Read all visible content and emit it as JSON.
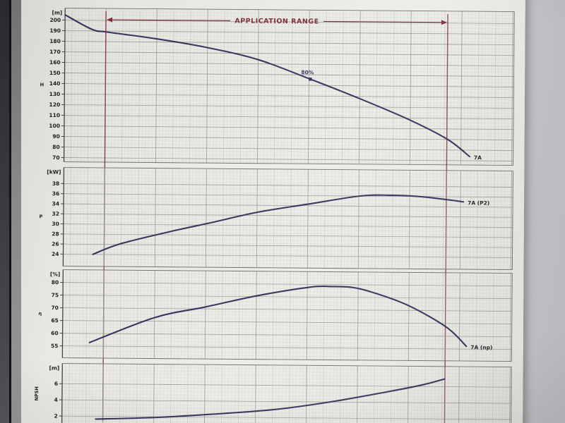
{
  "colors": {
    "curve": "#34345f",
    "app_range": "#7e2d3a",
    "grid_minor": "#bcc3b6",
    "grid_major": "#8f9b90",
    "border": "#6f6f68",
    "axis": "#44443e",
    "text": "#1e1e22",
    "page": "#eae9e4"
  },
  "chart_data": [
    {
      "type": "line",
      "unit_label": "[m]",
      "axis_letter": "H",
      "xlabel": "",
      "x_unit": "fraction of plot width (flow axis labels not visible)",
      "yticks": [
        200,
        190,
        180,
        170,
        160,
        150,
        140,
        130,
        120,
        110,
        100,
        90,
        80,
        70
      ],
      "ylim": [
        66,
        211.3
      ],
      "app_range": {
        "label": "APPLICATION RANGE",
        "x1": 0.091,
        "x2": 0.852
      },
      "annotations": [
        {
          "text": "80%",
          "at": [
            0.547,
            146
          ]
        }
      ],
      "series": [
        {
          "name": "7A",
          "end_label": "7A",
          "points": [
            [
              0.0,
              205
            ],
            [
              0.06,
              191.5
            ],
            [
              0.094,
              189
            ],
            [
              0.204,
              183
            ],
            [
              0.318,
              175
            ],
            [
              0.431,
              164
            ],
            [
              0.547,
              146
            ],
            [
              0.657,
              128
            ],
            [
              0.77,
              108
            ],
            [
              0.854,
              90
            ],
            [
              0.903,
              74
            ]
          ]
        }
      ]
    },
    {
      "type": "line",
      "unit_label": "[kW]",
      "axis_letter": "P",
      "xlabel": "",
      "yticks": [
        38,
        36,
        34,
        32,
        30,
        28,
        26,
        24
      ],
      "ylim": [
        21.6,
        41.2
      ],
      "series": [
        {
          "name": "7A (P2)",
          "end_label": "7A (P2)",
          "points": [
            [
              0.066,
              24.0
            ],
            [
              0.126,
              26.1
            ],
            [
              0.236,
              28.6
            ],
            [
              0.33,
              30.5
            ],
            [
              0.431,
              32.6
            ],
            [
              0.544,
              34.3
            ],
            [
              0.66,
              36.0
            ],
            [
              0.723,
              36.2
            ],
            [
              0.79,
              36.0
            ],
            [
              0.854,
              35.4
            ],
            [
              0.89,
              35.0
            ]
          ]
        }
      ]
    },
    {
      "type": "line",
      "unit_label": "[%]",
      "axis_letter": "η",
      "xlabel": "",
      "yticks": [
        80,
        75,
        70,
        65,
        60,
        55
      ],
      "ylim": [
        50.3,
        85
      ],
      "series": [
        {
          "name": "7A (np)",
          "end_label": "7A (np)",
          "points": [
            [
              0.06,
              56.4
            ],
            [
              0.204,
              66.4
            ],
            [
              0.318,
              70.8
            ],
            [
              0.431,
              75.3
            ],
            [
              0.55,
              78.9
            ],
            [
              0.597,
              79.2
            ],
            [
              0.645,
              78.9
            ],
            [
              0.692,
              76.9
            ],
            [
              0.77,
              71.9
            ],
            [
              0.854,
              63.6
            ],
            [
              0.899,
              56.1
            ]
          ]
        }
      ]
    },
    {
      "type": "line",
      "unit_label": "[m]",
      "axis_letter": "NPSH",
      "axis_letter_vertical": true,
      "xlabel": "",
      "yticks": [
        6,
        4,
        2
      ],
      "ylim": [
        1.0,
        8.5
      ],
      "series": [
        {
          "name": "NPSH",
          "end_label": "",
          "points": [
            [
              0.075,
              1.65
            ],
            [
              0.204,
              1.9
            ],
            [
              0.33,
              2.35
            ],
            [
              0.472,
              3.0
            ],
            [
              0.597,
              4.0
            ],
            [
              0.723,
              5.3
            ],
            [
              0.802,
              6.2
            ],
            [
              0.851,
              6.95
            ]
          ]
        }
      ]
    }
  ]
}
